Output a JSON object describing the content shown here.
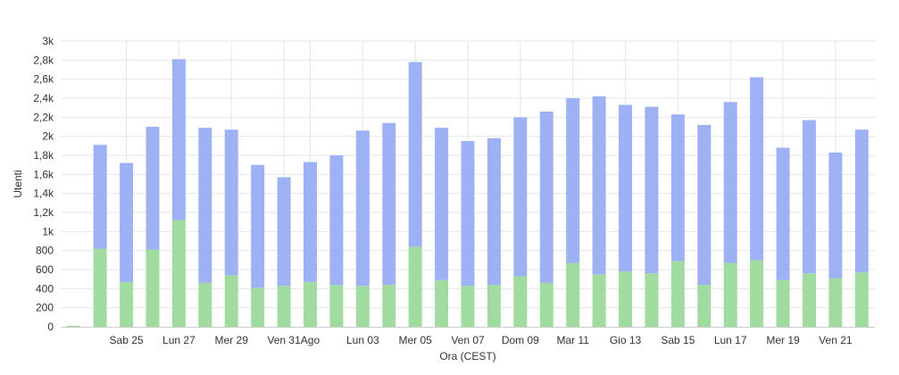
{
  "chart_data": {
    "type": "bar",
    "stacked": true,
    "xlabel": "Ora (CEST)",
    "ylabel": "Utenti",
    "ylim": [
      0,
      3000
    ],
    "yticks": [
      {
        "value": 0,
        "label": "0"
      },
      {
        "value": 200,
        "label": "200"
      },
      {
        "value": 400,
        "label": "400"
      },
      {
        "value": 600,
        "label": "600"
      },
      {
        "value": 800,
        "label": "800"
      },
      {
        "value": 1000,
        "label": "1k"
      },
      {
        "value": 1200,
        "label": "1,2k"
      },
      {
        "value": 1400,
        "label": "1,4k"
      },
      {
        "value": 1600,
        "label": "1,6k"
      },
      {
        "value": 1800,
        "label": "1,8k"
      },
      {
        "value": 2000,
        "label": "2k"
      },
      {
        "value": 2200,
        "label": "2,2k"
      },
      {
        "value": 2400,
        "label": "2,4k"
      },
      {
        "value": 2600,
        "label": "2,6k"
      },
      {
        "value": 2800,
        "label": "2,8k"
      },
      {
        "value": 3000,
        "label": "3k"
      }
    ],
    "xticks": [
      {
        "index": 2,
        "label": "Sab 25"
      },
      {
        "index": 4,
        "label": "Lun 27"
      },
      {
        "index": 6,
        "label": "Mer 29"
      },
      {
        "index": 8,
        "label": "Ven 31"
      },
      {
        "index": 9,
        "label": "Ago"
      },
      {
        "index": 11,
        "label": "Lun 03"
      },
      {
        "index": 13,
        "label": "Mer 05"
      },
      {
        "index": 15,
        "label": "Ven 07"
      },
      {
        "index": 17,
        "label": "Dom 09"
      },
      {
        "index": 19,
        "label": "Mar 11"
      },
      {
        "index": 21,
        "label": "Gio 13"
      },
      {
        "index": 23,
        "label": "Sab 15"
      },
      {
        "index": 25,
        "label": "Lun 17"
      },
      {
        "index": 27,
        "label": "Mer 19"
      },
      {
        "index": 29,
        "label": "Ven 21"
      }
    ],
    "grid": true,
    "series": [
      {
        "color": "#a0dca0",
        "values": [
          10,
          820,
          470,
          810,
          1120,
          460,
          540,
          410,
          430,
          470,
          440,
          430,
          440,
          840,
          490,
          430,
          440,
          530,
          460,
          670,
          550,
          580,
          560,
          690,
          440,
          670,
          700,
          490,
          560,
          510,
          570
        ]
      },
      {
        "color": "#9fb1f5",
        "values": [
          0,
          1090,
          1250,
          1290,
          1690,
          1630,
          1530,
          1290,
          1140,
          1260,
          1360,
          1630,
          1700,
          1940,
          1600,
          1520,
          1540,
          1670,
          1800,
          1730,
          1870,
          1750,
          1750,
          1540,
          1680,
          1690,
          1920,
          1390,
          1610,
          1320,
          1500
        ]
      }
    ]
  }
}
